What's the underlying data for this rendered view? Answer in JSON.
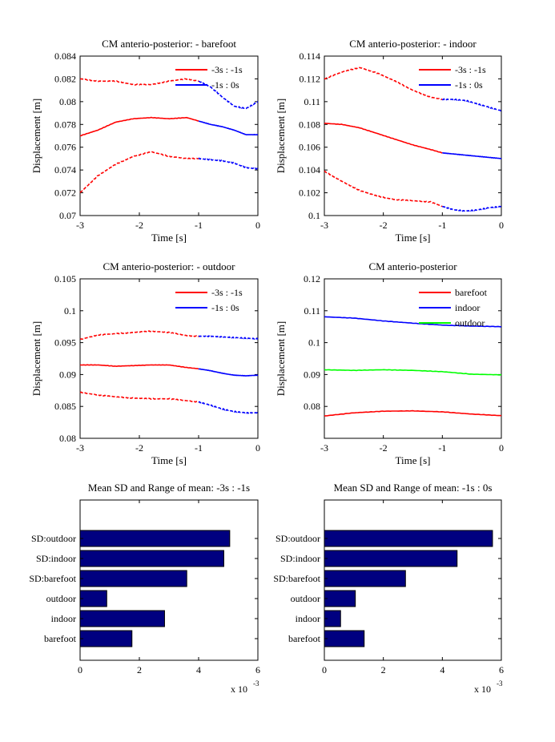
{
  "chart_data": [
    {
      "type": "line",
      "title": "CM anterio-posterior: - barefoot",
      "xlabel": "Time [s]",
      "ylabel": "Displacement [m]",
      "xlim": [
        -3,
        0
      ],
      "ylim": [
        0.07,
        0.084
      ],
      "xticks": [
        "-3",
        "-2",
        "-1",
        "0"
      ],
      "yticks": [
        "0.07",
        "0.072",
        "0.074",
        "0.076",
        "0.078",
        "0.08",
        "0.082",
        "0.084"
      ],
      "legend": {
        "position": "top-right",
        "entries": [
          {
            "label": "-3s : -1s",
            "color": "#ff0000"
          },
          {
            "label": "-1s : 0s",
            "color": "#0000ff"
          }
        ]
      },
      "series": [
        {
          "role": "upper",
          "x": [
            -3,
            -2.7,
            -2.4,
            -2.1,
            -1.8,
            -1.5,
            -1.2,
            -1.0
          ],
          "y": [
            0.082,
            0.0818,
            0.0818,
            0.0815,
            0.0815,
            0.0818,
            0.082,
            0.0818
          ],
          "x2": [
            -1.0,
            -0.8,
            -0.6,
            -0.4,
            -0.2,
            0
          ],
          "y2": [
            0.0818,
            0.0813,
            0.0804,
            0.0796,
            0.0794,
            0.08
          ]
        },
        {
          "role": "mean",
          "x": [
            -3,
            -2.7,
            -2.4,
            -2.1,
            -1.8,
            -1.5,
            -1.2,
            -1.0
          ],
          "y": [
            0.077,
            0.0775,
            0.0782,
            0.0785,
            0.0786,
            0.0785,
            0.0786,
            0.0783
          ],
          "x2": [
            -1.0,
            -0.8,
            -0.6,
            -0.4,
            -0.2,
            0
          ],
          "y2": [
            0.0783,
            0.078,
            0.0778,
            0.0775,
            0.0771,
            0.0771
          ]
        },
        {
          "role": "lower",
          "x": [
            -3,
            -2.7,
            -2.4,
            -2.1,
            -1.8,
            -1.5,
            -1.2,
            -1.0
          ],
          "y": [
            0.072,
            0.0735,
            0.0745,
            0.0752,
            0.0756,
            0.0752,
            0.075,
            0.075
          ],
          "x2": [
            -1.0,
            -0.8,
            -0.6,
            -0.4,
            -0.2,
            0
          ],
          "y2": [
            0.075,
            0.0749,
            0.0748,
            0.0746,
            0.0742,
            0.0741
          ]
        }
      ]
    },
    {
      "type": "line",
      "title": "CM anterio-posterior: - indoor",
      "xlabel": "Time [s]",
      "ylabel": "Displacement [m]",
      "xlim": [
        -3,
        0
      ],
      "ylim": [
        0.1,
        0.114
      ],
      "xticks": [
        "-3",
        "-2",
        "-1",
        "0"
      ],
      "yticks": [
        "0.1",
        "0.102",
        "0.104",
        "0.106",
        "0.108",
        "0.11",
        "0.112",
        "0.114"
      ],
      "legend": {
        "position": "top-right",
        "entries": [
          {
            "label": "-3s : -1s",
            "color": "#ff0000"
          },
          {
            "label": "-1s : 0s",
            "color": "#0000ff"
          }
        ]
      },
      "series": [
        {
          "role": "upper",
          "x": [
            -3,
            -2.7,
            -2.4,
            -2.1,
            -1.8,
            -1.5,
            -1.2,
            -1.0
          ],
          "y": [
            0.112,
            0.1126,
            0.113,
            0.1125,
            0.1118,
            0.111,
            0.1104,
            0.1102
          ],
          "x2": [
            -1.0,
            -0.8,
            -0.6,
            -0.4,
            -0.2,
            0
          ],
          "y2": [
            0.1102,
            0.1102,
            0.1101,
            0.1098,
            0.1095,
            0.1092
          ]
        },
        {
          "role": "mean",
          "x": [
            -3,
            -2.7,
            -2.4,
            -2.1,
            -1.8,
            -1.5,
            -1.2,
            -1.0
          ],
          "y": [
            0.1081,
            0.108,
            0.1077,
            0.1072,
            0.1067,
            0.1062,
            0.1058,
            0.1055
          ],
          "x2": [
            -1.0,
            -0.8,
            -0.6,
            -0.4,
            -0.2,
            0
          ],
          "y2": [
            0.1055,
            0.1054,
            0.1053,
            0.1052,
            0.1051,
            0.105
          ]
        },
        {
          "role": "lower",
          "x": [
            -3,
            -2.7,
            -2.4,
            -2.1,
            -1.8,
            -1.5,
            -1.2,
            -1.0
          ],
          "y": [
            0.1039,
            0.103,
            0.1022,
            0.1017,
            0.1014,
            0.1013,
            0.1012,
            0.1008
          ],
          "x2": [
            -1.0,
            -0.8,
            -0.6,
            -0.4,
            -0.2,
            0
          ],
          "y2": [
            0.1008,
            0.1005,
            0.1004,
            0.1005,
            0.1007,
            0.1008
          ]
        }
      ]
    },
    {
      "type": "line",
      "title": "CM anterio-posterior: - outdoor",
      "xlabel": "Time [s]",
      "ylabel": "Displacement [m]",
      "xlim": [
        -3,
        0
      ],
      "ylim": [
        0.08,
        0.105
      ],
      "xticks": [
        "-3",
        "-2",
        "-1",
        "0"
      ],
      "yticks": [
        "0.08",
        "0.085",
        "0.09",
        "0.095",
        "0.1",
        "0.105"
      ],
      "legend": {
        "position": "top-right",
        "entries": [
          {
            "label": "-3s : -1s",
            "color": "#ff0000"
          },
          {
            "label": "-1s : 0s",
            "color": "#0000ff"
          }
        ]
      },
      "series": [
        {
          "role": "upper",
          "x": [
            -3,
            -2.7,
            -2.4,
            -2.1,
            -1.8,
            -1.5,
            -1.2,
            -1.0
          ],
          "y": [
            0.0955,
            0.0962,
            0.0964,
            0.0966,
            0.0968,
            0.0966,
            0.0961,
            0.096
          ],
          "x2": [
            -1.0,
            -0.8,
            -0.6,
            -0.4,
            -0.2,
            0
          ],
          "y2": [
            0.096,
            0.096,
            0.0959,
            0.0958,
            0.0957,
            0.0956
          ]
        },
        {
          "role": "mean",
          "x": [
            -3,
            -2.7,
            -2.4,
            -2.1,
            -1.8,
            -1.5,
            -1.2,
            -1.0
          ],
          "y": [
            0.0915,
            0.0915,
            0.0913,
            0.0914,
            0.0915,
            0.0915,
            0.0911,
            0.0909
          ],
          "x2": [
            -1.0,
            -0.8,
            -0.6,
            -0.4,
            -0.2,
            0
          ],
          "y2": [
            0.0909,
            0.0906,
            0.0902,
            0.0899,
            0.0898,
            0.0899
          ]
        },
        {
          "role": "lower",
          "x": [
            -3,
            -2.7,
            -2.4,
            -2.1,
            -1.8,
            -1.5,
            -1.2,
            -1.0
          ],
          "y": [
            0.0872,
            0.0868,
            0.0865,
            0.0863,
            0.0862,
            0.0862,
            0.0859,
            0.0857
          ],
          "x2": [
            -1.0,
            -0.8,
            -0.6,
            -0.4,
            -0.2,
            0
          ],
          "y2": [
            0.0857,
            0.0852,
            0.0846,
            0.0842,
            0.084,
            0.084
          ]
        }
      ]
    },
    {
      "type": "line",
      "title": "CM anterio-posterior",
      "xlabel": "Time [s]",
      "ylabel": "Displacement [m]",
      "xlim": [
        -3,
        0
      ],
      "ylim": [
        0.07,
        0.12
      ],
      "xticks": [
        "-3",
        "-2",
        "-1",
        "0"
      ],
      "yticks": [
        "0.08",
        "0.09",
        "0.1",
        "0.11",
        "0.12"
      ],
      "legend": {
        "position": "top-right",
        "entries": [
          {
            "label": "barefoot",
            "color": "#ff0000"
          },
          {
            "label": "indoor",
            "color": "#0000ff"
          },
          {
            "label": "outdoor",
            "color": "#00ff00"
          }
        ]
      },
      "series": [
        {
          "name": "barefoot",
          "color": "#ff0000",
          "x": [
            -3,
            -2.5,
            -2.0,
            -1.5,
            -1.0,
            -0.5,
            0
          ],
          "y": [
            0.077,
            0.078,
            0.0785,
            0.0786,
            0.0783,
            0.0776,
            0.0771
          ]
        },
        {
          "name": "indoor",
          "color": "#0000ff",
          "x": [
            -3,
            -2.5,
            -2.0,
            -1.5,
            -1.0,
            -0.5,
            0
          ],
          "y": [
            0.1081,
            0.1077,
            0.1068,
            0.1061,
            0.1055,
            0.1052,
            0.105
          ]
        },
        {
          "name": "outdoor",
          "color": "#00ff00",
          "x": [
            -3,
            -2.5,
            -2.0,
            -1.5,
            -1.0,
            -0.5,
            0
          ],
          "y": [
            0.0915,
            0.0913,
            0.0915,
            0.0913,
            0.0909,
            0.0901,
            0.0899
          ]
        }
      ]
    },
    {
      "type": "bar",
      "orientation": "horizontal",
      "title": "Mean SD and Range of mean: -3s : -1s",
      "xlim": [
        0,
        6
      ],
      "xticks": [
        "0",
        "2",
        "4",
        "6"
      ],
      "multiplier": "x 10",
      "multiplier_exp": "-3",
      "bar_color": "#000080",
      "categories": [
        "SD:outdoor",
        "SD:indoor",
        "SD:barefoot",
        "outdoor",
        "indoor",
        "barefoot"
      ],
      "values": [
        5.05,
        4.85,
        3.6,
        0.9,
        2.85,
        1.75
      ]
    },
    {
      "type": "bar",
      "orientation": "horizontal",
      "title": "Mean SD and Range of mean: -1s : 0s",
      "xlim": [
        0,
        6
      ],
      "xticks": [
        "0",
        "2",
        "4",
        "6"
      ],
      "multiplier": "x 10",
      "multiplier_exp": "-3",
      "bar_color": "#000080",
      "categories": [
        "SD:outdoor",
        "SD:indoor",
        "SD:barefoot",
        "outdoor",
        "indoor",
        "barefoot"
      ],
      "values": [
        5.7,
        4.5,
        2.75,
        1.05,
        0.55,
        1.35
      ]
    }
  ]
}
